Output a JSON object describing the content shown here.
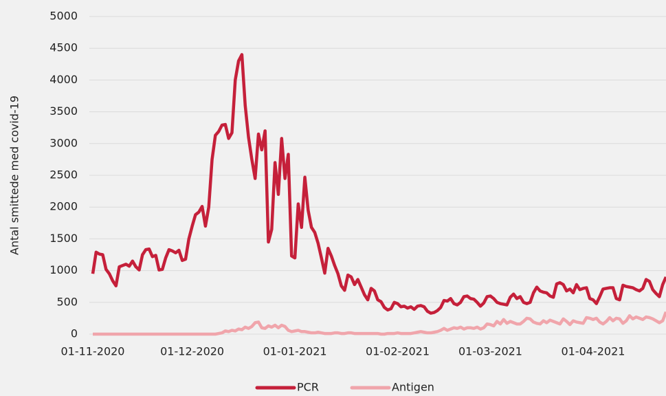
{
  "chart_data": {
    "type": "line",
    "ylabel": "Antal smittede med covid-19",
    "x": [
      "2020-11-01",
      "2020-11-02",
      "2020-11-03",
      "2020-11-04",
      "2020-11-05",
      "2020-11-06",
      "2020-11-07",
      "2020-11-08",
      "2020-11-09",
      "2020-11-10",
      "2020-11-11",
      "2020-11-12",
      "2020-11-13",
      "2020-11-14",
      "2020-11-15",
      "2020-11-16",
      "2020-11-17",
      "2020-11-18",
      "2020-11-19",
      "2020-11-20",
      "2020-11-21",
      "2020-11-22",
      "2020-11-23",
      "2020-11-24",
      "2020-11-25",
      "2020-11-26",
      "2020-11-27",
      "2020-11-28",
      "2020-11-29",
      "2020-11-30",
      "2020-12-01",
      "2020-12-02",
      "2020-12-03",
      "2020-12-04",
      "2020-12-05",
      "2020-12-06",
      "2020-12-07",
      "2020-12-08",
      "2020-12-09",
      "2020-12-10",
      "2020-12-11",
      "2020-12-12",
      "2020-12-13",
      "2020-12-14",
      "2020-12-15",
      "2020-12-16",
      "2020-12-17",
      "2020-12-18",
      "2020-12-19",
      "2020-12-20",
      "2020-12-21",
      "2020-12-22",
      "2020-12-23",
      "2020-12-24",
      "2020-12-25",
      "2020-12-26",
      "2020-12-27",
      "2020-12-28",
      "2020-12-29",
      "2020-12-30",
      "2020-12-31",
      "2021-01-01",
      "2021-01-02",
      "2021-01-03",
      "2021-01-04",
      "2021-01-05",
      "2021-01-06",
      "2021-01-07",
      "2021-01-08",
      "2021-01-09",
      "2021-01-10",
      "2021-01-11",
      "2021-01-12",
      "2021-01-13",
      "2021-01-14",
      "2021-01-15",
      "2021-01-16",
      "2021-01-17",
      "2021-01-18",
      "2021-01-19",
      "2021-01-20",
      "2021-01-21",
      "2021-01-22",
      "2021-01-23",
      "2021-01-24",
      "2021-01-25",
      "2021-01-26",
      "2021-01-27",
      "2021-01-28",
      "2021-01-29",
      "2021-01-30",
      "2021-01-31",
      "2021-02-01",
      "2021-02-02",
      "2021-02-03",
      "2021-02-04",
      "2021-02-05",
      "2021-02-06",
      "2021-02-07",
      "2021-02-08",
      "2021-02-09",
      "2021-02-10",
      "2021-02-11",
      "2021-02-12",
      "2021-02-13",
      "2021-02-14",
      "2021-02-15",
      "2021-02-16",
      "2021-02-17",
      "2021-02-18",
      "2021-02-19",
      "2021-02-20",
      "2021-02-21",
      "2021-02-22",
      "2021-02-23",
      "2021-02-24",
      "2021-02-25",
      "2021-02-26",
      "2021-02-27",
      "2021-02-28",
      "2021-03-01",
      "2021-03-02",
      "2021-03-03",
      "2021-03-04",
      "2021-03-05",
      "2021-03-06",
      "2021-03-07",
      "2021-03-08",
      "2021-03-09",
      "2021-03-10",
      "2021-03-11",
      "2021-03-12",
      "2021-03-13",
      "2021-03-14",
      "2021-03-15",
      "2021-03-16",
      "2021-03-17",
      "2021-03-18",
      "2021-03-19",
      "2021-03-20",
      "2021-03-21",
      "2021-03-22",
      "2021-03-23",
      "2021-03-24",
      "2021-03-25",
      "2021-03-26",
      "2021-03-27",
      "2021-03-28",
      "2021-03-29",
      "2021-03-30",
      "2021-03-31",
      "2021-04-01",
      "2021-04-02",
      "2021-04-03",
      "2021-04-04",
      "2021-04-05",
      "2021-04-06",
      "2021-04-07",
      "2021-04-08",
      "2021-04-09",
      "2021-04-10",
      "2021-04-11",
      "2021-04-12",
      "2021-04-13",
      "2021-04-14",
      "2021-04-15",
      "2021-04-16",
      "2021-04-17",
      "2021-04-18",
      "2021-04-19",
      "2021-04-20",
      "2021-04-21",
      "2021-04-22",
      "2021-04-23"
    ],
    "series": [
      {
        "name": "PCR",
        "color": "#c5203a",
        "values": [
          950,
          1290,
          1260,
          1250,
          1020,
          950,
          840,
          760,
          1060,
          1080,
          1100,
          1070,
          1150,
          1060,
          1010,
          1250,
          1330,
          1340,
          1220,
          1240,
          1010,
          1020,
          1200,
          1330,
          1310,
          1280,
          1320,
          1160,
          1180,
          1500,
          1700,
          1880,
          1920,
          2010,
          1700,
          2000,
          2750,
          3130,
          3190,
          3290,
          3300,
          3080,
          3170,
          4000,
          4300,
          4400,
          3600,
          3100,
          2750,
          2450,
          3150,
          2900,
          3200,
          1450,
          1650,
          2700,
          2200,
          3080,
          2450,
          2830,
          1230,
          1200,
          2050,
          1680,
          2470,
          1950,
          1680,
          1600,
          1430,
          1200,
          960,
          1350,
          1230,
          1080,
          950,
          760,
          690,
          930,
          900,
          780,
          860,
          740,
          620,
          540,
          720,
          680,
          540,
          510,
          420,
          380,
          400,
          500,
          480,
          430,
          440,
          410,
          430,
          390,
          440,
          450,
          430,
          360,
          330,
          340,
          370,
          420,
          530,
          520,
          560,
          480,
          460,
          500,
          590,
          600,
          560,
          550,
          500,
          440,
          490,
          590,
          600,
          560,
          500,
          480,
          470,
          460,
          580,
          630,
          560,
          590,
          500,
          480,
          500,
          650,
          740,
          680,
          660,
          650,
          600,
          580,
          790,
          810,
          780,
          680,
          710,
          650,
          780,
          700,
          720,
          730,
          560,
          540,
          480,
          590,
          710,
          720,
          730,
          730,
          560,
          540,
          770,
          750,
          740,
          730,
          700,
          680,
          720,
          860,
          830,
          700,
          640,
          590,
          780,
          900
        ]
      },
      {
        "name": "Antigen",
        "color": "#f0a5ab",
        "values": [
          0,
          0,
          0,
          0,
          0,
          0,
          0,
          0,
          0,
          0,
          0,
          0,
          0,
          0,
          0,
          0,
          0,
          0,
          0,
          0,
          0,
          0,
          0,
          0,
          0,
          0,
          0,
          0,
          0,
          0,
          0,
          0,
          0,
          0,
          0,
          0,
          0,
          0,
          10,
          20,
          50,
          40,
          60,
          50,
          80,
          70,
          110,
          90,
          120,
          180,
          190,
          100,
          90,
          130,
          110,
          140,
          100,
          140,
          120,
          60,
          40,
          50,
          60,
          40,
          40,
          30,
          20,
          20,
          30,
          20,
          10,
          10,
          10,
          20,
          20,
          10,
          10,
          20,
          20,
          10,
          10,
          10,
          10,
          10,
          10,
          10,
          10,
          0,
          0,
          10,
          10,
          10,
          20,
          10,
          10,
          10,
          10,
          20,
          30,
          40,
          30,
          20,
          20,
          30,
          40,
          60,
          90,
          60,
          80,
          100,
          90,
          110,
          80,
          100,
          100,
          90,
          110,
          80,
          100,
          160,
          150,
          130,
          200,
          160,
          230,
          170,
          200,
          180,
          160,
          160,
          200,
          250,
          240,
          190,
          170,
          160,
          210,
          180,
          220,
          200,
          180,
          160,
          240,
          200,
          150,
          210,
          190,
          180,
          170,
          260,
          250,
          230,
          250,
          190,
          160,
          200,
          260,
          210,
          250,
          240,
          170,
          210,
          290,
          240,
          270,
          250,
          230,
          270,
          260,
          240,
          210,
          180,
          210,
          350
        ]
      }
    ],
    "xlim": [
      "2020-11-01",
      "2021-04-23"
    ],
    "xticks": [
      {
        "value": "2020-11-01",
        "label": "01-11-2020"
      },
      {
        "value": "2020-12-01",
        "label": "01-12-2020"
      },
      {
        "value": "2021-01-01",
        "label": "01-01-2021"
      },
      {
        "value": "2021-02-01",
        "label": "01-02-2021"
      },
      {
        "value": "2021-03-01",
        "label": "01-03-2021"
      },
      {
        "value": "2021-04-01",
        "label": "01-04-2021"
      }
    ],
    "ylim": [
      0,
      5000
    ],
    "yticks": [
      0,
      500,
      1000,
      1500,
      2000,
      2500,
      3000,
      3500,
      4000,
      4500,
      5000
    ],
    "grid": true,
    "legend": "bottom"
  }
}
